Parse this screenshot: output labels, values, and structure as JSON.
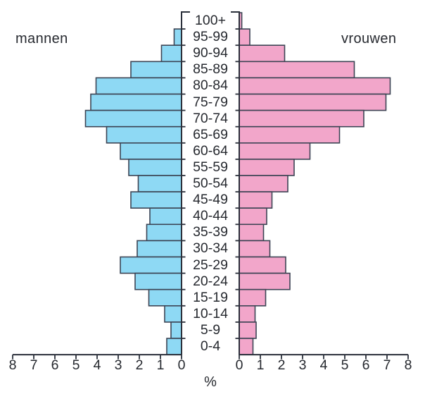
{
  "chart_data": {
    "type": "bar",
    "subtype": "population-pyramid",
    "title": "",
    "left_series_label": "mannen",
    "right_series_label": "vrouwen",
    "xlabel": "%",
    "age_groups": [
      "100+",
      "95-99",
      "90-94",
      "85-89",
      "80-84",
      "75-79",
      "70-74",
      "65-69",
      "60-64",
      "55-59",
      "50-54",
      "45-49",
      "40-44",
      "35-39",
      "30-34",
      "25-29",
      "20-24",
      "15-19",
      "10-14",
      "5-9",
      "0-4"
    ],
    "series": [
      {
        "name": "mannen",
        "side": "left",
        "color": "#8ed9f4",
        "values": [
          0,
          0.35,
          0.95,
          2.4,
          4.05,
          4.3,
          4.55,
          3.55,
          2.9,
          2.5,
          2.05,
          2.4,
          1.5,
          1.65,
          2.1,
          2.9,
          2.2,
          1.55,
          0.8,
          0.5,
          0.7
        ]
      },
      {
        "name": "vrouwen",
        "side": "right",
        "color": "#f2a6ca",
        "values": [
          0.12,
          0.5,
          2.15,
          5.45,
          7.15,
          6.95,
          5.9,
          4.75,
          3.35,
          2.6,
          2.3,
          1.55,
          1.3,
          1.15,
          1.45,
          2.2,
          2.4,
          1.25,
          0.75,
          0.8,
          0.65
        ]
      }
    ],
    "x_axis": {
      "min": 0,
      "max": 8,
      "left_tick_labels": [
        "8",
        "7",
        "6",
        "5",
        "4",
        "3",
        "2",
        "1",
        "0"
      ],
      "right_tick_labels": [
        "0",
        "1",
        "2",
        "3",
        "4",
        "5",
        "6",
        "7",
        "8"
      ]
    },
    "layout_hints": {
      "grid": false,
      "legend": "side labels above bars"
    },
    "colors": {
      "male_fill": "#8ed9f4",
      "female_fill": "#f2a6ca",
      "bar_stroke": "#3c4454",
      "axis": "#2b303b",
      "text": "#26292f"
    }
  }
}
